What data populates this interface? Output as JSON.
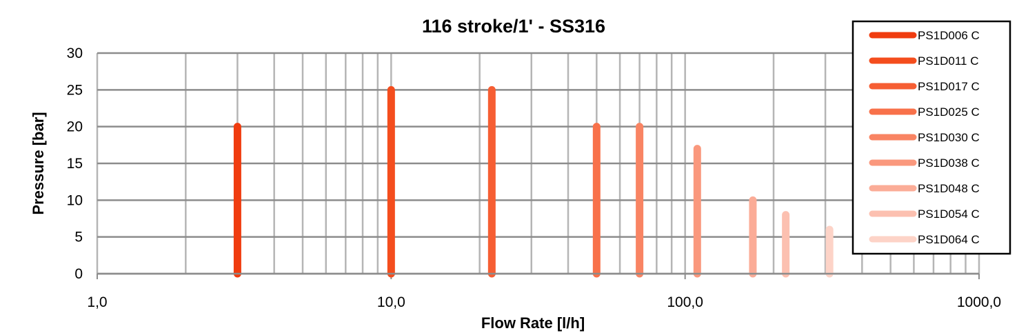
{
  "chart_data": {
    "type": "line",
    "title": "116 stroke/1' - SS316",
    "xlabel": "Flow Rate [l/h]",
    "ylabel": "Pressure [bar]",
    "x_scale": "log",
    "xlim": [
      1,
      1000
    ],
    "ylim": [
      0,
      30
    ],
    "y_ticks": [
      0,
      5,
      10,
      15,
      20,
      25,
      30
    ],
    "y_tick_labels": [
      "0",
      "5",
      "10",
      "15",
      "20",
      "25",
      "30"
    ],
    "x_ticks": [
      1,
      10,
      100,
      1000
    ],
    "x_tick_labels": [
      "1,0",
      "10,0",
      "100,0",
      "1000,0"
    ],
    "grid": true,
    "legend_position": "right",
    "series": [
      {
        "name": "PS1D006 C",
        "color": "#f03c0f",
        "x": [
          3,
          3
        ],
        "y": [
          0,
          20
        ]
      },
      {
        "name": "PS1D011 C",
        "color": "#f44d1d",
        "x": [
          10,
          10
        ],
        "y": [
          0,
          25
        ]
      },
      {
        "name": "PS1D017 C",
        "color": "#f65e33",
        "x": [
          22,
          22
        ],
        "y": [
          0,
          25
        ]
      },
      {
        "name": "PS1D025 C",
        "color": "#f8714a",
        "x": [
          50,
          50
        ],
        "y": [
          0,
          20
        ]
      },
      {
        "name": "PS1D030 C",
        "color": "#f98463",
        "x": [
          70,
          70
        ],
        "y": [
          0,
          20
        ]
      },
      {
        "name": "PS1D038 C",
        "color": "#fa987d",
        "x": [
          110,
          110
        ],
        "y": [
          0,
          17
        ]
      },
      {
        "name": "PS1D048 C",
        "color": "#fbac97",
        "x": [
          170,
          170
        ],
        "y": [
          0,
          10
        ]
      },
      {
        "name": "PS1D054 C",
        "color": "#fcc0b0",
        "x": [
          220,
          220
        ],
        "y": [
          0,
          8
        ]
      },
      {
        "name": "PS1D064 C",
        "color": "#fdd3c7",
        "x": [
          310,
          310
        ],
        "y": [
          0,
          6
        ]
      }
    ]
  }
}
